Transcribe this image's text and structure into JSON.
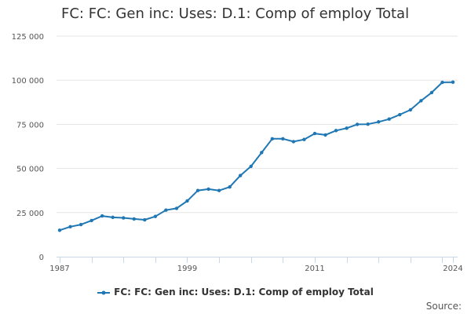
{
  "title": "FC: FC: Gen inc: Uses: D.1: Comp of employ Total",
  "source_label": "Source:",
  "colors": {
    "series": "#1f77b4",
    "grid": "#e6e6e6",
    "axis": "#ccd6eb"
  },
  "chart_data": {
    "type": "line",
    "title": "FC: FC: Gen inc: Uses: D.1: Comp of employ Total",
    "xlabel": "",
    "ylabel": "",
    "ylim": [
      0,
      125000
    ],
    "xlim": [
      1987,
      2024
    ],
    "y_ticks": [
      0,
      25000,
      50000,
      75000,
      100000,
      125000
    ],
    "y_tick_labels": [
      "0",
      "25 000",
      "50 000",
      "75 000",
      "100 000",
      "125 000"
    ],
    "x_tick_labels": [
      "1987",
      "1999",
      "2011",
      "2024"
    ],
    "x_tick_values": [
      1987,
      1999,
      2011,
      2024
    ],
    "grid": true,
    "legend_position": "bottom-center",
    "series": [
      {
        "name": "FC: FC: Gen inc: Uses: D.1: Comp of employ Total",
        "x": [
          1987,
          1988,
          1989,
          1990,
          1991,
          1992,
          1993,
          1994,
          1995,
          1996,
          1997,
          1998,
          1999,
          2000,
          2001,
          2002,
          2003,
          2004,
          2005,
          2006,
          2007,
          2008,
          2009,
          2010,
          2011,
          2012,
          2013,
          2014,
          2015,
          2016,
          2017,
          2018,
          2019,
          2020,
          2021,
          2022,
          2023,
          2024
        ],
        "y": [
          15000,
          17000,
          18200,
          20500,
          23100,
          22300,
          22000,
          21400,
          20900,
          22800,
          26400,
          27400,
          31600,
          37500,
          38300,
          37500,
          39500,
          46000,
          51200,
          59000,
          66800,
          66800,
          65200,
          66400,
          69800,
          69000,
          71500,
          72800,
          75000,
          75100,
          76400,
          78000,
          80500,
          83200,
          88400,
          93000,
          98800,
          98900
        ]
      }
    ]
  }
}
